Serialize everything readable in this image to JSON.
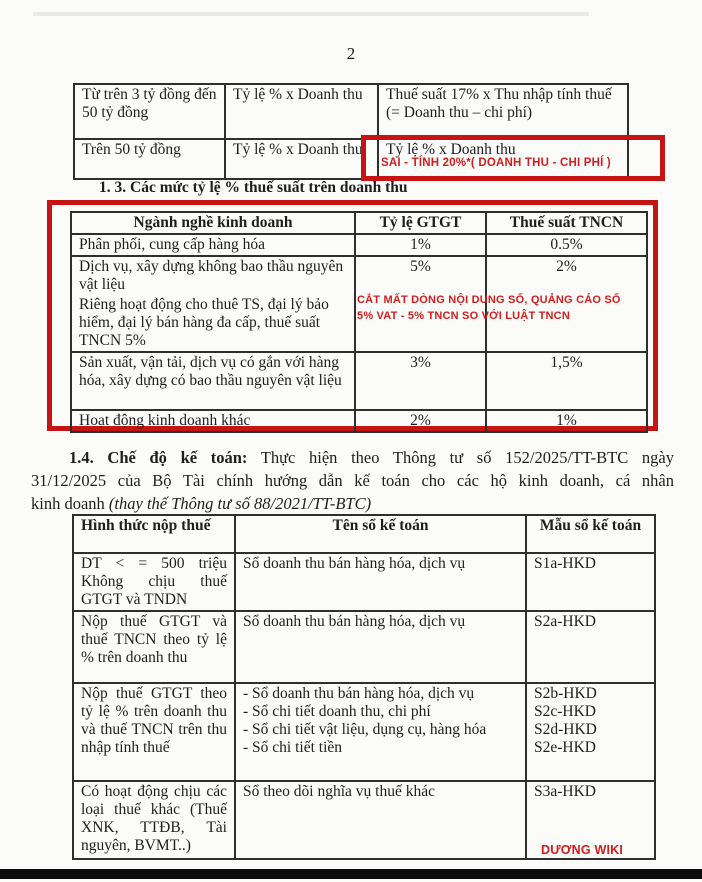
{
  "page": {
    "number": "2"
  },
  "colors": {
    "annotation_red": "#c41414",
    "annotation_text_red": "#d31c1c",
    "table_line": "#2f2f2f",
    "page_bg": "#fbfbfa",
    "bottom_bar": "#0c0c0c"
  },
  "table1": {
    "rows": [
      {
        "c0": "Từ trên 3 tỷ đồng đến 50 tỷ đồng",
        "c1": "Tỷ lệ % x Doanh thu",
        "c2a": "Thuế suất 17% x Thu nhập tính thuế",
        "c2b": "(= Doanh thu – chi phí)"
      },
      {
        "c0": "Trên 50 tỷ đồng",
        "c1": "Tỷ lệ % x Doanh thu",
        "c2": "Tỷ lệ % x Doanh thu"
      }
    ]
  },
  "annotation1": "SAI - TÍNH 20%*( DOANH THU - CHI PHÍ )",
  "heading_13": "1. 3. Các mức tỷ lệ % thuế suất trên doanh thu",
  "table2": {
    "headers": [
      "Ngành nghề kinh doanh",
      "Tỷ lệ GTGT",
      "Thuế suất TNCN"
    ],
    "rows": [
      {
        "name": "Phân phối, cung cấp hàng hóa",
        "gtgt": "1%",
        "tncn": "0.5%"
      },
      {
        "name": "Dịch vụ, xây dựng không bao thầu nguyên vật liệu",
        "gtgt": "5%",
        "tncn": "2%"
      },
      {
        "name": "Riêng hoạt động cho thuê TS, đại lý bảo hiểm, đại lý bán hàng đa cấp, thuế suất TNCN 5%",
        "gtgt": "",
        "tncn": ""
      },
      {
        "name": "Sản xuất, vận tải, dịch vụ có gắn với hàng hóa, xây dựng có bao thầu nguyên vật liệu",
        "gtgt": "3%",
        "tncn": "1,5%"
      },
      {
        "name": "Hoạt động kinh doanh khác",
        "gtgt": "2%",
        "tncn": "1%"
      }
    ]
  },
  "annotation2": {
    "line1": "CẮT MẤT DÒNG NỘI DUNG SỐ, QUẢNG CÁO SỐ",
    "line2": "5% VAT - 5% TNCN SO VỚI LUẬT TNCN"
  },
  "para_14": {
    "bold": "1.4. Chế độ kế toán:",
    "line1_rest": " Thực hiện theo Thông tư số 152/2025/TT-BTC ngày",
    "line2": "31/12/2025 của Bộ Tài chính hướng dẫn kế toán cho các hộ kinh doanh, cá nhân",
    "line3_normal": "kinh doanh ",
    "line3_italic": "(thay thế Thông tư số 88/2021/TT-BTC)"
  },
  "table3": {
    "headers": [
      "Hình thức nộp thuế",
      "Tên sổ kế toán",
      "Mẫu sổ kế toán"
    ],
    "rows": [
      {
        "form": "DT < = 500 triệu Không chịu thuế GTGT và TNDN",
        "books": [
          "Sổ doanh thu bán hàng hóa, dịch vụ"
        ],
        "codes": [
          "S1a-HKD"
        ]
      },
      {
        "form": "Nộp thuế GTGT và thuế TNCN theo tỷ lệ % trên doanh thu",
        "books": [
          "Sổ doanh thu bán hàng hóa, dịch vụ"
        ],
        "codes": [
          "S2a-HKD"
        ]
      },
      {
        "form": "Nộp thuế GTGT theo tỷ lệ % trên doanh thu và thuế TNCN trên thu nhập tính thuế",
        "books": [
          "- Sổ doanh thu bán hàng hóa, dịch vụ",
          "- Sổ chi tiết doanh thu, chi phí",
          "- Sổ chi tiết vật liệu, dụng cụ, hàng hóa",
          "- Sổ chi tiết tiền"
        ],
        "codes": [
          "S2b-HKD",
          "S2c-HKD",
          "S2d-HKD",
          "S2e-HKD"
        ]
      },
      {
        "form": "Có hoạt động chịu các loại thuế khác (Thuế XNK, TTĐB, Tài nguyên, BVMT..)",
        "books": [
          "Sổ theo dõi nghĩa vụ thuế khác"
        ],
        "codes": [
          "S3a-HKD"
        ]
      }
    ]
  },
  "watermark": "DƯƠNG WIKI"
}
